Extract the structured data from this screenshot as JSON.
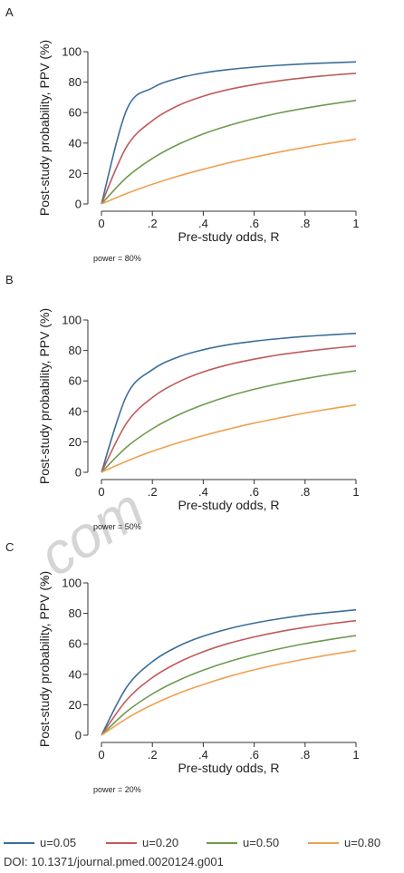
{
  "figure": {
    "legend": [
      "u=0.05",
      "u=0.20",
      "u=0.50",
      "u=0.80"
    ],
    "doi": "DOI: 10.1371/journal.pmed.0020124.g001",
    "watermark": ".com"
  },
  "colors": {
    "u=0.05": "#3a6d9a",
    "u=0.20": "#c05a5a",
    "u=0.50": "#6f9a4e",
    "u=0.80": "#f0a050"
  },
  "chart_data": [
    {
      "type": "line",
      "panel": "A",
      "xlabel": "Pre-study odds, R",
      "ylabel": "Post-study probability, PPV (%)",
      "x_ticks": [
        "0",
        ".2",
        ".4",
        ".6",
        ".8",
        "1"
      ],
      "y_ticks": [
        "0",
        "20",
        "40",
        "60",
        "80",
        "100"
      ],
      "xlim": [
        0,
        1
      ],
      "ylim": [
        0,
        100
      ],
      "note": "power = 80%",
      "x": [
        0,
        0.1,
        0.2,
        0.3,
        0.4,
        0.5,
        0.6,
        0.7,
        0.8,
        0.9,
        1.0
      ],
      "series": [
        {
          "name": "u=0.05",
          "values": [
            0,
            62.2,
            76.2,
            82.5,
            86.0,
            88.3,
            89.9,
            91.1,
            92.0,
            92.7,
            93.3
          ]
        },
        {
          "name": "u=0.20",
          "values": [
            0,
            37.9,
            54.7,
            64.5,
            70.8,
            75.2,
            78.4,
            80.9,
            82.9,
            84.5,
            85.8
          ]
        },
        {
          "name": "u=0.50",
          "values": [
            0,
            17.6,
            29.9,
            39.0,
            46.0,
            51.5,
            56.0,
            59.8,
            62.9,
            65.6,
            68.0
          ]
        },
        {
          "name": "u=0.80",
          "values": [
            0,
            6.9,
            12.9,
            18.2,
            22.8,
            27.0,
            30.7,
            34.1,
            37.2,
            40.0,
            42.6
          ]
        }
      ]
    },
    {
      "type": "line",
      "panel": "B",
      "xlabel": "Pre-study odds, R",
      "ylabel": "Post-study probability, PPV (%)",
      "x_ticks": [
        "0",
        ".2",
        ".4",
        ".6",
        ".8",
        "1"
      ],
      "y_ticks": [
        "0",
        "20",
        "40",
        "60",
        "80",
        "100"
      ],
      "xlim": [
        0,
        1
      ],
      "ylim": [
        0,
        100
      ],
      "note": "power = 50%",
      "x": [
        0,
        0.1,
        0.2,
        0.3,
        0.4,
        0.5,
        0.6,
        0.7,
        0.8,
        0.9,
        1.0
      ],
      "series": [
        {
          "name": "u=0.05",
          "values": [
            0,
            50.8,
            67.4,
            75.6,
            80.5,
            83.8,
            86.1,
            87.8,
            89.2,
            90.3,
            91.2
          ]
        },
        {
          "name": "u=0.20",
          "values": [
            0,
            32.6,
            49.1,
            59.1,
            65.9,
            70.7,
            74.3,
            77.2,
            79.4,
            81.3,
            82.9
          ]
        },
        {
          "name": "u=0.50",
          "values": [
            0,
            16.7,
            28.6,
            37.5,
            44.4,
            50.0,
            54.5,
            58.3,
            61.5,
            64.3,
            66.7
          ]
        },
        {
          "name": "u=0.80",
          "values": [
            0,
            7.4,
            13.8,
            19.3,
            24.1,
            28.4,
            32.3,
            35.7,
            38.9,
            41.7,
            44.3
          ]
        }
      ]
    },
    {
      "type": "line",
      "panel": "C",
      "xlabel": "Pre-study odds, R",
      "ylabel": "Post-study probability, PPV (%)",
      "x_ticks": [
        "0",
        ".2",
        ".4",
        ".6",
        ".8",
        "1"
      ],
      "y_ticks": [
        "0",
        "20",
        "40",
        "60",
        "80",
        "100"
      ],
      "xlim": [
        0,
        1
      ],
      "ylim": [
        0,
        100
      ],
      "note": "power = 20%",
      "x": [
        0,
        0.1,
        0.2,
        0.3,
        0.4,
        0.5,
        0.6,
        0.7,
        0.8,
        0.9,
        1.0
      ],
      "series": [
        {
          "name": "u=0.05",
          "values": [
            0,
            31.8,
            48.3,
            58.3,
            65.0,
            69.9,
            73.6,
            76.5,
            78.9,
            80.7,
            82.3
          ]
        },
        {
          "name": "u=0.20",
          "values": [
            0,
            23.3,
            37.8,
            47.6,
            54.8,
            60.3,
            64.5,
            68.0,
            70.8,
            73.2,
            75.2
          ]
        },
        {
          "name": "u=0.50",
          "values": [
            0,
            15.6,
            27.1,
            35.8,
            42.7,
            48.3,
            52.9,
            56.8,
            60.1,
            62.9,
            65.4
          ]
        },
        {
          "name": "u=0.80",
          "values": [
            0,
            11.1,
            20.0,
            27.3,
            33.3,
            38.5,
            42.9,
            46.7,
            50.0,
            52.9,
            55.6
          ]
        }
      ]
    }
  ]
}
